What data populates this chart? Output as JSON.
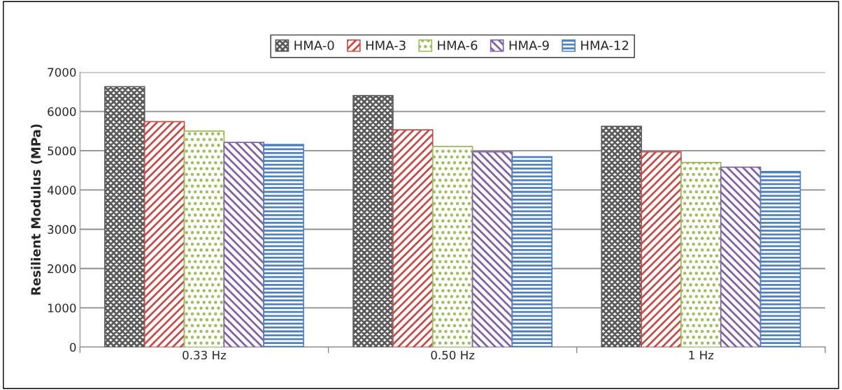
{
  "chart_data": {
    "type": "bar",
    "ylabel": "Resilient Modulus (MPa)",
    "categories": [
      "0.33 Hz",
      "0.50 Hz",
      "1 Hz"
    ],
    "series": [
      {
        "name": "HMA-0",
        "color": "#595959",
        "values": [
          6630,
          6400,
          5620
        ]
      },
      {
        "name": "HMA-3",
        "color": "#c0504d",
        "values": [
          5740,
          5530,
          4970
        ]
      },
      {
        "name": "HMA-6",
        "color": "#9bbb59",
        "values": [
          5500,
          5110,
          4700
        ]
      },
      {
        "name": "HMA-9",
        "color": "#8064a2",
        "values": [
          5210,
          4970,
          4580
        ]
      },
      {
        "name": "HMA-12",
        "color": "#4f81bd",
        "values": [
          5160,
          4850,
          4470
        ]
      }
    ],
    "ylim": [
      0,
      7000
    ],
    "yticks": [
      0,
      1000,
      2000,
      3000,
      4000,
      5000,
      6000,
      7000
    ],
    "grid": "y",
    "legend": "top"
  }
}
